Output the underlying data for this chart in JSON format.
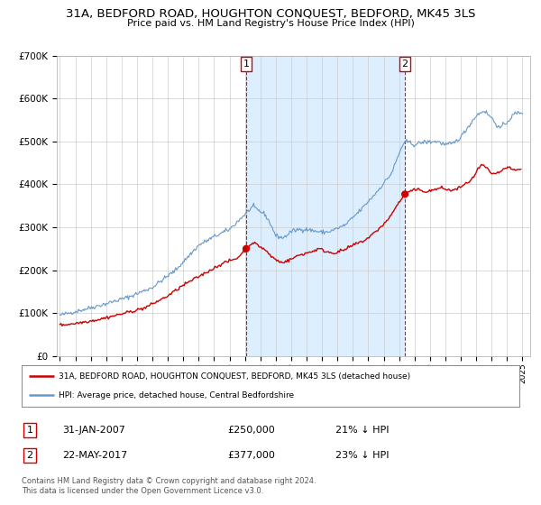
{
  "title": "31A, BEDFORD ROAD, HOUGHTON CONQUEST, BEDFORD, MK45 3LS",
  "subtitle": "Price paid vs. HM Land Registry's House Price Index (HPI)",
  "background_color": "#ffffff",
  "plot_bg_color": "#ffffff",
  "grid_color": "#cccccc",
  "shade_color": "#ddeeff",
  "ylim": [
    0,
    700000
  ],
  "yticks": [
    0,
    100000,
    200000,
    300000,
    400000,
    500000,
    600000,
    700000
  ],
  "ytick_labels": [
    "£0",
    "£100K",
    "£200K",
    "£300K",
    "£400K",
    "£500K",
    "£600K",
    "£700K"
  ],
  "xlim_start": 1994.8,
  "xlim_end": 2025.5,
  "xtick_years": [
    1995,
    1996,
    1997,
    1998,
    1999,
    2000,
    2001,
    2002,
    2003,
    2004,
    2005,
    2006,
    2007,
    2008,
    2009,
    2010,
    2011,
    2012,
    2013,
    2014,
    2015,
    2016,
    2017,
    2018,
    2019,
    2020,
    2021,
    2022,
    2023,
    2024,
    2025
  ],
  "red_line_color": "#cc0000",
  "blue_line_color": "#6699cc",
  "marker_color": "#cc0000",
  "vline_color": "#cc0000",
  "purchase1_x": 2007.08,
  "purchase1_y": 250000,
  "purchase1_label": "1",
  "purchase2_x": 2017.38,
  "purchase2_y": 377000,
  "purchase2_label": "2",
  "legend_red_label": "31A, BEDFORD ROAD, HOUGHTON CONQUEST, BEDFORD, MK45 3LS (detached house)",
  "legend_blue_label": "HPI: Average price, detached house, Central Bedfordshire",
  "note1_box_label": "1",
  "note1_date": "31-JAN-2007",
  "note1_price": "£250,000",
  "note1_change": "21% ↓ HPI",
  "note2_box_label": "2",
  "note2_date": "22-MAY-2017",
  "note2_price": "£377,000",
  "note2_change": "23% ↓ HPI",
  "footer": "Contains HM Land Registry data © Crown copyright and database right 2024.\nThis data is licensed under the Open Government Licence v3.0."
}
